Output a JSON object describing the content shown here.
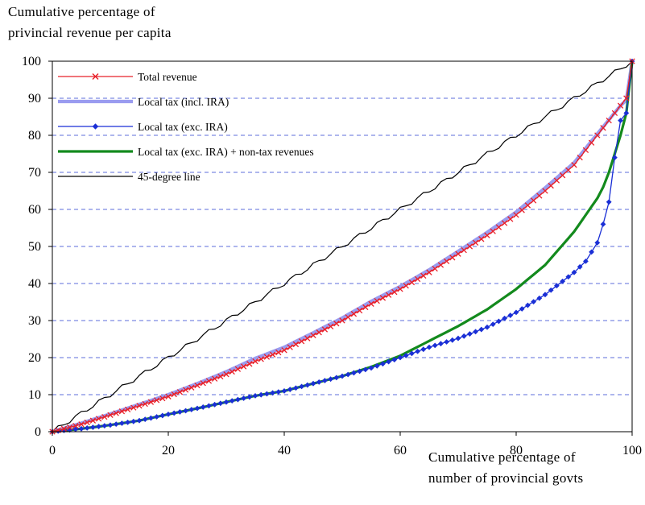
{
  "chart_data": {
    "type": "line",
    "ylabel_lines": [
      "Cumulative percentage of",
      "privincial revenue per capita"
    ],
    "xlabel_lines": [
      "Cumulative percentage of",
      "number of provincial govts"
    ],
    "xlim": [
      0,
      100
    ],
    "ylim": [
      0,
      100
    ],
    "x_ticks": [
      0,
      20,
      40,
      60,
      80,
      100
    ],
    "y_ticks": [
      0,
      10,
      20,
      30,
      40,
      50,
      60,
      70,
      80,
      90,
      100
    ],
    "grid": "horizontal dashed",
    "legend_position": "top-left",
    "series": [
      {
        "name": "Total revenue",
        "color": "#e8202a",
        "marker": "x",
        "x": [
          0,
          5,
          10,
          15,
          20,
          25,
          30,
          35,
          40,
          45,
          50,
          55,
          60,
          65,
          70,
          75,
          80,
          85,
          90,
          92,
          94,
          95,
          96,
          97,
          98,
          99,
          100
        ],
        "y": [
          0,
          2,
          4.5,
          7,
          9.5,
          12.5,
          15.5,
          19,
          22,
          26,
          30,
          34.5,
          38.5,
          43,
          48,
          53,
          58.5,
          65,
          72,
          76,
          80,
          82,
          84,
          86,
          88,
          90,
          100
        ]
      },
      {
        "name": "Local tax (incl. IRA)",
        "color": "#9a9cf0",
        "marker": "none",
        "x": [
          0,
          5,
          10,
          15,
          20,
          25,
          30,
          35,
          40,
          45,
          50,
          55,
          60,
          65,
          70,
          75,
          80,
          85,
          90,
          92,
          94,
          95,
          96,
          97,
          98,
          99,
          100
        ],
        "y": [
          0,
          2.3,
          4.8,
          7.4,
          10,
          13,
          16.2,
          19.8,
          22.8,
          26.7,
          30.7,
          35.2,
          39.2,
          43.7,
          48.7,
          53.8,
          59.3,
          65.8,
          72.6,
          76.5,
          80.4,
          82.3,
          84.2,
          86.1,
          88,
          89.5,
          100
        ]
      },
      {
        "name": "Local tax (exc. IRA)",
        "color": "#1a2fd6",
        "marker": "diamond",
        "x": [
          0,
          5,
          10,
          15,
          20,
          25,
          30,
          35,
          40,
          45,
          50,
          55,
          60,
          65,
          70,
          75,
          80,
          85,
          90,
          92,
          94,
          95,
          96,
          97,
          98,
          99,
          100
        ],
        "y": [
          0,
          0.8,
          1.8,
          3,
          4.7,
          6.3,
          8,
          9.7,
          11,
          13,
          15,
          17.2,
          20,
          22.8,
          25.2,
          28.2,
          32.2,
          37,
          43,
          46,
          51,
          56,
          62,
          74,
          84,
          86,
          100
        ]
      },
      {
        "name": "Local tax (exc. IRA) + non-tax revenues",
        "color": "#138a1d",
        "marker": "none",
        "x": [
          0,
          5,
          10,
          15,
          20,
          25,
          30,
          35,
          40,
          45,
          50,
          55,
          60,
          65,
          70,
          75,
          80,
          85,
          90,
          92,
          94,
          95,
          96,
          97,
          98,
          99,
          100
        ],
        "y": [
          0,
          0.8,
          1.8,
          3,
          4.7,
          6.3,
          8,
          9.7,
          11,
          13,
          15,
          17.5,
          20.5,
          24.5,
          28.5,
          33,
          38.5,
          45,
          54,
          58.5,
          63,
          66,
          70,
          75,
          80,
          86,
          100
        ]
      },
      {
        "name": "45-degree line",
        "color": "#000000",
        "marker": "none",
        "x": [
          0,
          100
        ],
        "y": [
          0,
          100
        ]
      }
    ]
  }
}
